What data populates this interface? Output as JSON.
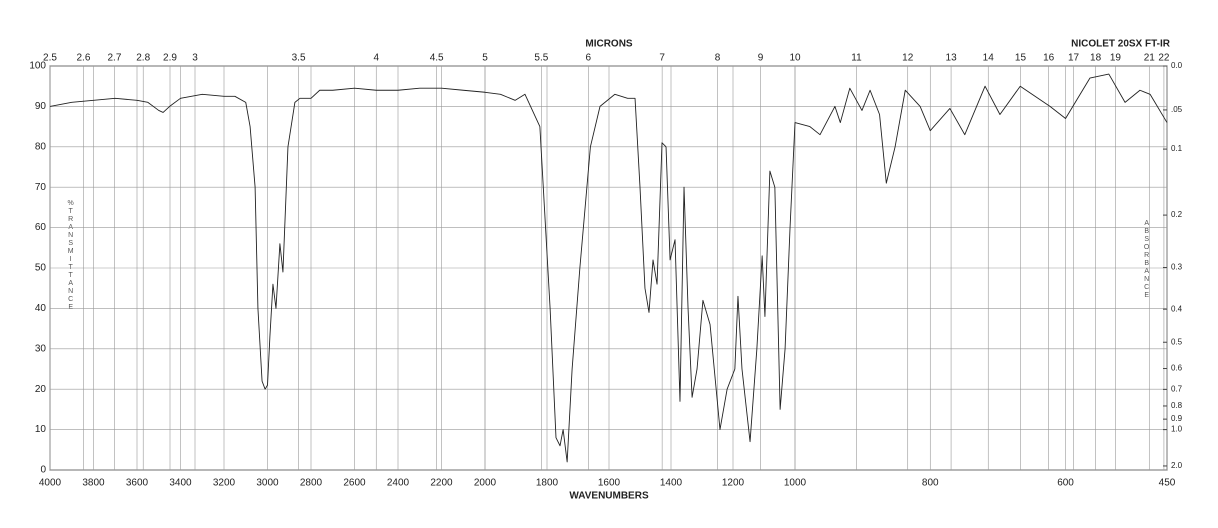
{
  "chart_data": {
    "type": "line",
    "title": "NICOLET 20SX FT-IR",
    "x_label": "WAVENUMBERS",
    "x2_label": "MICRONS",
    "y_label": "%TRANSMITTANCE",
    "y2_label": "ABSORBANCE",
    "xlim": [
      4000,
      450
    ],
    "xbreaks": [
      2000,
      1000
    ],
    "xticks": [
      4000,
      3800,
      3600,
      3400,
      3200,
      3000,
      2800,
      2600,
      2400,
      2200,
      2000,
      1800,
      1600,
      1400,
      1200,
      1000,
      800,
      600,
      450
    ],
    "x2ticks": [
      2.5,
      2.6,
      2.7,
      2.8,
      2.9,
      3,
      3.5,
      4,
      4.5,
      5,
      5.5,
      6,
      7,
      8,
      9,
      10,
      11,
      12,
      13,
      14,
      15,
      16,
      17,
      18,
      19,
      21,
      22
    ],
    "ylim": [
      0,
      100
    ],
    "yticks": [
      0,
      10,
      20,
      30,
      40,
      50,
      60,
      70,
      80,
      90,
      100
    ],
    "y2scale": "absorbance",
    "y2ticks": [
      {
        "value": 0,
        "label": "0.0"
      },
      {
        "value": 0.05,
        "label": ".05"
      },
      0.1,
      0.2,
      0.3,
      0.4,
      0.5,
      0.6,
      0.7,
      0.8,
      0.9,
      {
        "value": 1,
        "label": "1.0"
      },
      {
        "value": 2,
        "label": "2.0"
      }
    ],
    "grid": true,
    "series": [
      {
        "color": "#222222",
        "x": [
          4000,
          3900,
          3800,
          3700,
          3600,
          3550,
          3500,
          3480,
          3450,
          3400,
          3300,
          3200,
          3150,
          3100,
          3080,
          3057,
          3044,
          3025,
          3011,
          3000,
          2989,
          2975,
          2961,
          2943,
          2929,
          2906,
          2874,
          2851,
          2800,
          2760,
          2700,
          2600,
          2500,
          2400,
          2300,
          2200,
          2100,
          2000,
          1950,
          1903,
          1871,
          1823,
          1790,
          1771,
          1758,
          1748,
          1735,
          1719,
          1694,
          1660,
          1629,
          1581,
          1540,
          1516,
          1500,
          1484,
          1471,
          1458,
          1445,
          1429,
          1416,
          1403,
          1387,
          1371,
          1358,
          1345,
          1332,
          1316,
          1297,
          1274,
          1242,
          1219,
          1194,
          1184,
          1171,
          1145,
          1123,
          1106,
          1097,
          1081,
          1065,
          1048,
          1032,
          1016,
          1000,
          978,
          963,
          941,
          933,
          919,
          901,
          889,
          875,
          865,
          852,
          837,
          815,
          800,
          771,
          749,
          719,
          697,
          667,
          623,
          600,
          564,
          536,
          512,
          490,
          475,
          450
        ],
        "values": [
          90,
          91,
          91.5,
          92,
          91.5,
          91,
          89,
          88.5,
          90,
          92,
          93,
          92.5,
          92.5,
          91,
          85,
          70,
          40,
          22,
          20,
          21,
          33,
          46,
          40,
          56,
          49,
          80,
          91,
          92,
          92,
          94,
          94,
          94.5,
          94,
          94,
          94.5,
          94.5,
          94,
          93.5,
          93,
          91.5,
          93,
          85,
          40,
          8,
          6,
          10,
          2,
          25,
          50,
          80,
          90,
          93,
          92,
          92,
          70,
          45,
          39,
          52,
          46,
          81,
          80,
          52,
          57,
          17,
          70,
          40,
          18,
          25,
          42,
          36,
          10,
          20,
          25,
          43,
          25,
          7,
          30,
          53,
          38,
          74,
          70,
          15,
          30,
          60,
          86,
          85,
          83,
          90,
          86,
          94.5,
          89,
          94,
          88,
          71,
          80,
          94,
          90,
          84,
          89.5,
          83,
          95,
          88,
          95,
          90,
          87,
          97,
          98,
          91,
          94,
          93,
          86
        ]
      }
    ]
  }
}
